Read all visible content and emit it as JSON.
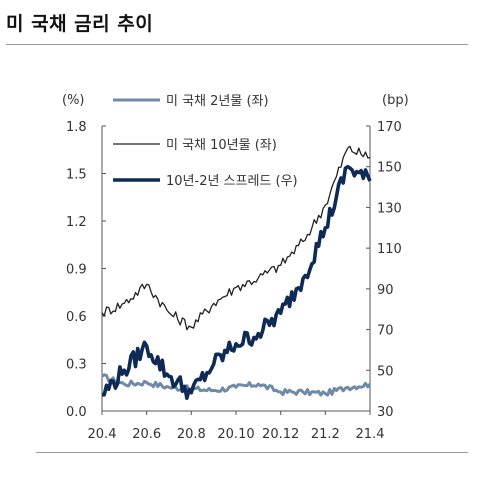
{
  "title": "미 국채 금리 추이",
  "chart_data": {
    "type": "line",
    "left_axis": {
      "unit": "(%)",
      "min": 0.0,
      "max": 1.8,
      "ticks": [
        "0.0",
        "0.3",
        "0.6",
        "0.9",
        "1.2",
        "1.5",
        "1.8"
      ]
    },
    "right_axis": {
      "unit": "(bp)",
      "min": 30,
      "max": 170,
      "ticks": [
        "30",
        "50",
        "70",
        "90",
        "110",
        "130",
        "150",
        "170"
      ]
    },
    "x_axis": {
      "ticks": [
        "20.4",
        "20.6",
        "20.8",
        "20.10",
        "20.12",
        "21.2",
        "21.4"
      ]
    },
    "grid": false,
    "legend_position": "top",
    "series": [
      {
        "name": "미 국채 2년물 (좌)",
        "axis": "left",
        "color": "#6f8aa8",
        "x": [
          "20.4",
          "20.5",
          "20.6",
          "20.7",
          "20.8",
          "20.9",
          "20.10",
          "20.11",
          "20.12",
          "21.1",
          "21.2",
          "21.3",
          "21.4"
        ],
        "values": [
          0.22,
          0.17,
          0.18,
          0.15,
          0.14,
          0.13,
          0.15,
          0.17,
          0.12,
          0.12,
          0.11,
          0.15,
          0.17
        ]
      },
      {
        "name": "미 국채 10년물 (좌)",
        "axis": "left",
        "color": "#222222",
        "x": [
          "20.4",
          "20.5",
          "20.6",
          "20.7",
          "20.8",
          "20.9",
          "20.10",
          "20.11",
          "20.12",
          "21.1",
          "21.2",
          "21.3",
          "21.4"
        ],
        "values": [
          0.62,
          0.68,
          0.8,
          0.62,
          0.53,
          0.68,
          0.78,
          0.84,
          0.92,
          1.07,
          1.3,
          1.66,
          1.6
        ]
      },
      {
        "name": "10년-2년 스프레드 (우)",
        "axis": "right",
        "color": "#0f2a55",
        "x": [
          "20.4",
          "20.5",
          "20.6",
          "20.7",
          "20.8",
          "20.9",
          "20.10",
          "20.11",
          "20.12",
          "21.1",
          "21.2",
          "21.3",
          "21.4"
        ],
        "values": [
          38,
          50,
          62,
          47,
          39,
          53,
          63,
          68,
          78,
          95,
          120,
          150,
          143
        ]
      }
    ]
  }
}
